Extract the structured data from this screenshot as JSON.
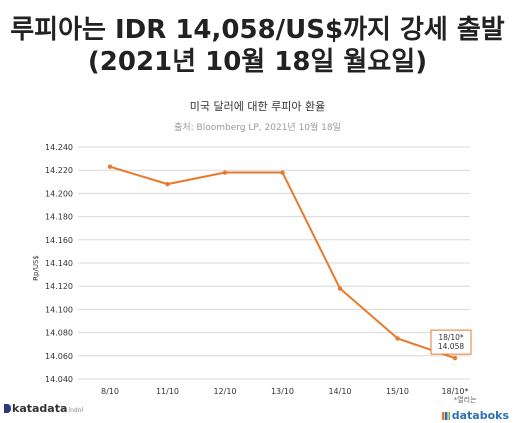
{
  "header": {
    "title_line1": "루피아는 IDR 14,058/US$까지 강세 출발",
    "title_line2": "(2021년 10월 18일 월요일)",
    "subtitle": "미국 달러에 대한 루피아 환율",
    "source": "출처: Bloomberg LP, 2021년 10월 18일"
  },
  "footer": {
    "left_brand": "katadata",
    "left_small": "lndnl",
    "right_tag": "*열리는",
    "right_brand": "databoks"
  },
  "colors": {
    "line": "#e8792b",
    "grid": "#d8d8d8",
    "axis_text": "#333333"
  },
  "chart_data": {
    "type": "line",
    "title": "미국 달러에 대한 루피아 환율",
    "ylabel": "Rp/US$",
    "xlabel": "",
    "categories": [
      "8/10",
      "11/10",
      "12/10",
      "13/10",
      "14/10",
      "15/10",
      "18/10*"
    ],
    "series": [
      {
        "values": [
          14223,
          14208,
          14218,
          14218,
          14118,
          14075,
          14058
        ]
      }
    ],
    "yticks": [
      "14.240",
      "14.220",
      "14.200",
      "14.180",
      "14.160",
      "14.140",
      "14.120",
      "14.100",
      "14.080",
      "14.060",
      "14.040"
    ],
    "ylim": [
      14040,
      14240
    ],
    "grid": true,
    "annotation": {
      "category": "18/10*",
      "line1": "18/10*",
      "line2": "14.058"
    }
  }
}
